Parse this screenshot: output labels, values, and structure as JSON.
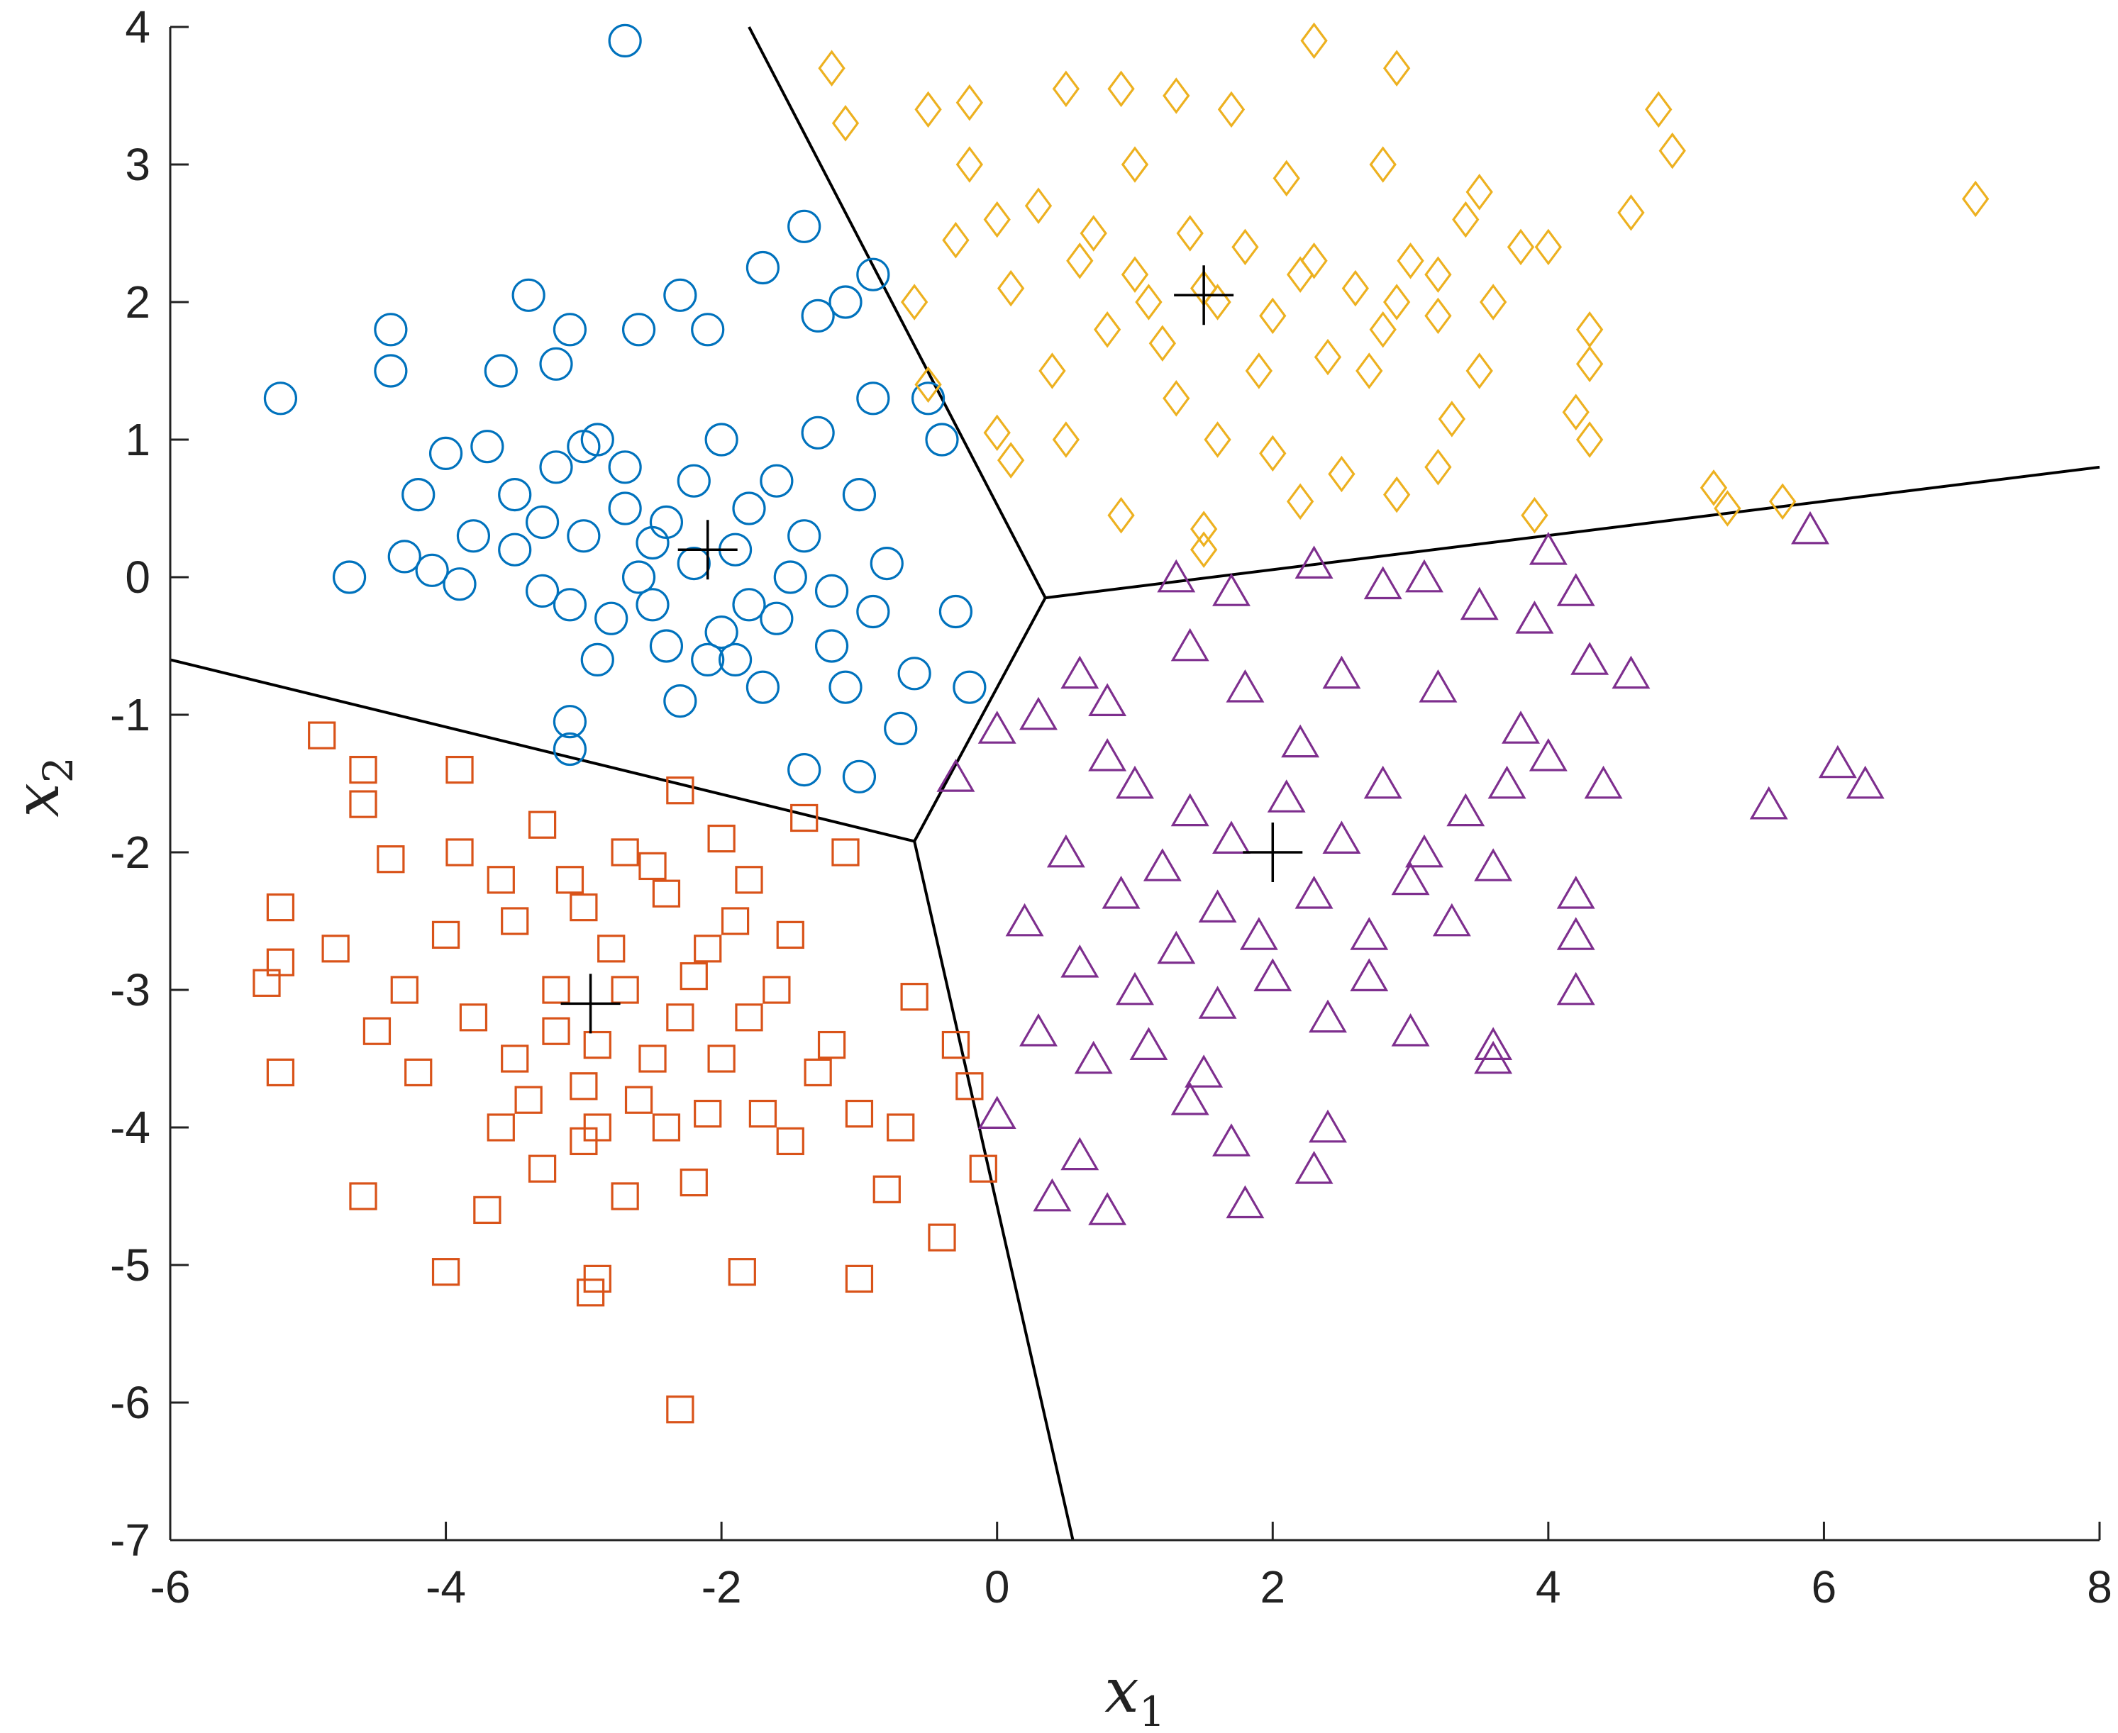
{
  "chart_data": {
    "type": "scatter",
    "title": "",
    "xlabel": {
      "base": "x",
      "sub": "1"
    },
    "ylabel": {
      "base": "x",
      "sub": "2"
    },
    "xlim": [
      -6,
      8
    ],
    "ylim": [
      -7,
      4
    ],
    "xticks": [
      "-6",
      "-4",
      "-2",
      "0",
      "2",
      "4",
      "6",
      "8"
    ],
    "yticks": [
      "4",
      "3",
      "2",
      "1",
      "0",
      "-1",
      "-2",
      "-3",
      "-4",
      "-5",
      "-6",
      "-7"
    ],
    "grid": false,
    "legend": "none",
    "series": [
      {
        "marker": "circle",
        "color": "#0072BD",
        "centroid": [
          -2.1,
          0.2
        ],
        "points": [
          [
            -2.7,
            3.9
          ],
          [
            -5.2,
            1.3
          ],
          [
            -4.7,
            0.0
          ],
          [
            -4.4,
            1.8
          ],
          [
            -4.4,
            1.5
          ],
          [
            -4.3,
            0.15
          ],
          [
            -4.2,
            0.6
          ],
          [
            -4.1,
            0.05
          ],
          [
            -3.9,
            -0.05
          ],
          [
            -3.8,
            0.3
          ],
          [
            -3.6,
            1.5
          ],
          [
            -3.4,
            2.05
          ],
          [
            -3.2,
            1.55
          ],
          [
            -3.1,
            1.8
          ],
          [
            -3.2,
            0.8
          ],
          [
            -3.1,
            -0.2
          ],
          [
            -2.9,
            1.0
          ],
          [
            -2.7,
            0.5
          ],
          [
            -2.6,
            1.8
          ],
          [
            -2.3,
            2.05
          ],
          [
            -2.1,
            1.8
          ],
          [
            -1.7,
            2.25
          ],
          [
            -1.4,
            2.55
          ],
          [
            -1.3,
            1.9
          ],
          [
            -1.1,
            2.0
          ],
          [
            -0.9,
            2.2
          ],
          [
            -0.9,
            1.3
          ],
          [
            -0.5,
            1.3
          ],
          [
            -0.4,
            1.0
          ],
          [
            -0.3,
            -0.25
          ],
          [
            -0.2,
            -0.8
          ],
          [
            -1.0,
            -1.45
          ],
          [
            -0.7,
            -1.1
          ],
          [
            -1.4,
            -1.4
          ],
          [
            -3.1,
            -1.05
          ],
          [
            -3.1,
            -1.25
          ],
          [
            -1.9,
            -0.6
          ],
          [
            -1.6,
            -0.3
          ],
          [
            -2.4,
            0.4
          ],
          [
            -2.2,
            0.1
          ],
          [
            -2.0,
            -0.4
          ],
          [
            -1.8,
            0.5
          ],
          [
            -2.5,
            -0.2
          ],
          [
            -1.5,
            0.0
          ],
          [
            -1.2,
            -0.5
          ],
          [
            -2.8,
            -0.3
          ],
          [
            -3.5,
            0.6
          ],
          [
            -3.7,
            0.95
          ],
          [
            -4.0,
            0.9
          ],
          [
            -1.0,
            0.6
          ],
          [
            -0.8,
            0.1
          ],
          [
            -0.6,
            -0.7
          ],
          [
            -3.5,
            0.2
          ],
          [
            -3.3,
            0.4
          ],
          [
            -2.6,
            0.0
          ],
          [
            -1.7,
            -0.8
          ],
          [
            -2.3,
            -0.9
          ],
          [
            -2.0,
            1.0
          ],
          [
            -1.3,
            1.05
          ],
          [
            -0.9,
            -0.25
          ],
          [
            -3.0,
            0.3
          ],
          [
            -2.9,
            -0.6
          ],
          [
            -2.4,
            -0.5
          ],
          [
            -2.2,
            0.7
          ],
          [
            -1.9,
            0.2
          ],
          [
            -1.8,
            -0.2
          ],
          [
            -1.6,
            0.7
          ],
          [
            -1.4,
            0.3
          ],
          [
            -1.2,
            -0.1
          ],
          [
            -1.1,
            -0.8
          ],
          [
            -2.7,
            0.8
          ],
          [
            -3.3,
            -0.1
          ],
          [
            -3.0,
            0.95
          ],
          [
            -2.5,
            0.25
          ],
          [
            -2.1,
            -0.6
          ]
        ]
      },
      {
        "marker": "diamond",
        "color": "#EDB120",
        "centroid": [
          1.5,
          2.05
        ],
        "points": [
          [
            -1.2,
            3.7
          ],
          [
            -1.1,
            3.3
          ],
          [
            -0.5,
            3.4
          ],
          [
            -0.2,
            3.45
          ],
          [
            0.5,
            3.55
          ],
          [
            0.9,
            3.55
          ],
          [
            1.3,
            3.5
          ],
          [
            2.3,
            3.9
          ],
          [
            2.9,
            3.7
          ],
          [
            4.8,
            3.4
          ],
          [
            4.9,
            3.1
          ],
          [
            7.1,
            2.75
          ],
          [
            4.6,
            2.65
          ],
          [
            3.8,
            2.4
          ],
          [
            4.0,
            2.4
          ],
          [
            4.3,
            1.8
          ],
          [
            4.3,
            1.55
          ],
          [
            4.2,
            1.2
          ],
          [
            4.3,
            1.0
          ],
          [
            5.2,
            0.65
          ],
          [
            5.3,
            0.5
          ],
          [
            5.7,
            0.55
          ],
          [
            3.9,
            0.45
          ],
          [
            3.3,
            1.15
          ],
          [
            3.2,
            0.8
          ],
          [
            2.9,
            0.6
          ],
          [
            2.5,
            0.75
          ],
          [
            2.2,
            0.55
          ],
          [
            1.5,
            0.2
          ],
          [
            1.5,
            0.35
          ],
          [
            0.9,
            0.45
          ],
          [
            0.5,
            1.0
          ],
          [
            0.1,
            0.85
          ],
          [
            0.0,
            1.05
          ],
          [
            -0.5,
            1.4
          ],
          [
            -0.6,
            2.0
          ],
          [
            -0.3,
            2.45
          ],
          [
            0.1,
            2.1
          ],
          [
            0.3,
            2.7
          ],
          [
            0.6,
            2.3
          ],
          [
            0.8,
            1.8
          ],
          [
            1.0,
            2.2
          ],
          [
            1.2,
            1.7
          ],
          [
            1.4,
            2.5
          ],
          [
            1.6,
            2.0
          ],
          [
            1.8,
            2.4
          ],
          [
            2.0,
            1.9
          ],
          [
            2.2,
            2.2
          ],
          [
            2.4,
            1.6
          ],
          [
            2.6,
            2.1
          ],
          [
            2.8,
            1.8
          ],
          [
            3.0,
            2.3
          ],
          [
            3.2,
            1.9
          ],
          [
            3.4,
            2.6
          ],
          [
            3.6,
            2.0
          ],
          [
            1.0,
            3.0
          ],
          [
            1.7,
            3.4
          ],
          [
            2.1,
            2.9
          ],
          [
            2.8,
            3.0
          ],
          [
            3.5,
            2.8
          ],
          [
            0.4,
            1.5
          ],
          [
            1.3,
            1.3
          ],
          [
            1.9,
            1.5
          ],
          [
            2.7,
            1.5
          ],
          [
            3.5,
            1.5
          ],
          [
            -0.2,
            3.0
          ],
          [
            0.0,
            2.6
          ],
          [
            0.7,
            2.5
          ],
          [
            1.1,
            2.0
          ],
          [
            1.5,
            2.1
          ],
          [
            2.3,
            2.3
          ],
          [
            2.9,
            2.0
          ],
          [
            3.2,
            2.2
          ],
          [
            1.6,
            1.0
          ],
          [
            2.0,
            0.9
          ]
        ]
      },
      {
        "marker": "square",
        "color": "#D95319",
        "centroid": [
          -2.95,
          -3.1
        ],
        "points": [
          [
            -4.9,
            -1.15
          ],
          [
            -4.6,
            -1.4
          ],
          [
            -4.6,
            -1.65
          ],
          [
            -5.2,
            -2.4
          ],
          [
            -5.2,
            -2.8
          ],
          [
            -5.3,
            -2.95
          ],
          [
            -5.2,
            -3.6
          ],
          [
            -4.6,
            -4.5
          ],
          [
            -4.0,
            -5.05
          ],
          [
            -2.95,
            -5.2
          ],
          [
            -2.9,
            -5.1
          ],
          [
            -2.3,
            -6.05
          ],
          [
            -1.85,
            -5.05
          ],
          [
            -1.0,
            -5.1
          ],
          [
            -0.4,
            -4.8
          ],
          [
            -0.1,
            -4.3
          ],
          [
            -0.8,
            -4.45
          ],
          [
            -0.2,
            -3.7
          ],
          [
            -0.3,
            -3.4
          ],
          [
            -0.6,
            -3.05
          ],
          [
            -1.1,
            -2.0
          ],
          [
            -1.4,
            -1.75
          ],
          [
            -2.3,
            -1.55
          ],
          [
            -3.9,
            -1.4
          ],
          [
            -4.4,
            -2.05
          ],
          [
            -4.0,
            -2.6
          ],
          [
            -3.6,
            -2.2
          ],
          [
            -3.3,
            -1.8
          ],
          [
            -3.0,
            -2.4
          ],
          [
            -2.7,
            -2.0
          ],
          [
            -2.4,
            -2.3
          ],
          [
            -2.1,
            -2.7
          ],
          [
            -1.8,
            -2.2
          ],
          [
            -1.5,
            -2.6
          ],
          [
            -3.8,
            -3.2
          ],
          [
            -3.5,
            -3.5
          ],
          [
            -3.2,
            -3.0
          ],
          [
            -2.9,
            -3.4
          ],
          [
            -2.6,
            -3.8
          ],
          [
            -2.3,
            -3.2
          ],
          [
            -2.0,
            -3.5
          ],
          [
            -1.7,
            -3.9
          ],
          [
            -3.6,
            -4.0
          ],
          [
            -3.3,
            -4.3
          ],
          [
            -3.0,
            -4.1
          ],
          [
            -2.7,
            -4.5
          ],
          [
            -2.4,
            -4.0
          ],
          [
            -4.2,
            -3.6
          ],
          [
            -4.5,
            -3.3
          ],
          [
            -4.8,
            -2.7
          ],
          [
            -1.2,
            -3.4
          ],
          [
            -1.0,
            -3.9
          ],
          [
            -0.7,
            -4.0
          ],
          [
            -1.5,
            -4.1
          ],
          [
            -1.8,
            -3.2
          ],
          [
            -2.2,
            -4.4
          ],
          [
            -3.7,
            -4.6
          ],
          [
            -3.4,
            -3.8
          ],
          [
            -2.8,
            -2.7
          ],
          [
            -3.1,
            -2.2
          ],
          [
            -2.5,
            -2.1
          ],
          [
            -2.0,
            -1.9
          ],
          [
            -3.9,
            -2.0
          ],
          [
            -4.3,
            -3.0
          ],
          [
            -3.0,
            -3.7
          ],
          [
            -2.7,
            -3.0
          ],
          [
            -2.2,
            -2.9
          ],
          [
            -1.9,
            -2.5
          ],
          [
            -1.6,
            -3.0
          ],
          [
            -3.5,
            -2.5
          ],
          [
            -3.2,
            -3.3
          ],
          [
            -2.9,
            -4.0
          ],
          [
            -2.5,
            -3.5
          ],
          [
            -2.1,
            -3.9
          ],
          [
            -1.3,
            -3.6
          ]
        ]
      },
      {
        "marker": "triangle",
        "color": "#7E2F8E",
        "centroid": [
          2.0,
          -2.0
        ],
        "points": [
          [
            1.3,
            0.0
          ],
          [
            1.7,
            -0.1
          ],
          [
            2.3,
            0.1
          ],
          [
            2.8,
            -0.05
          ],
          [
            3.1,
            0.0
          ],
          [
            3.5,
            -0.2
          ],
          [
            3.9,
            -0.3
          ],
          [
            4.0,
            0.2
          ],
          [
            4.2,
            -0.1
          ],
          [
            4.3,
            -0.6
          ],
          [
            4.6,
            -0.7
          ],
          [
            5.9,
            0.35
          ],
          [
            6.1,
            -1.35
          ],
          [
            6.3,
            -1.5
          ],
          [
            5.6,
            -1.65
          ],
          [
            4.4,
            -1.5
          ],
          [
            4.2,
            -2.3
          ],
          [
            4.2,
            -2.6
          ],
          [
            4.2,
            -3.0
          ],
          [
            3.6,
            -3.4
          ],
          [
            3.6,
            -3.5
          ],
          [
            3.0,
            -3.3
          ],
          [
            2.4,
            -4.0
          ],
          [
            2.3,
            -4.3
          ],
          [
            1.8,
            -4.55
          ],
          [
            1.7,
            -4.1
          ],
          [
            1.4,
            -3.8
          ],
          [
            0.8,
            -4.6
          ],
          [
            0.6,
            -4.2
          ],
          [
            0.4,
            -4.5
          ],
          [
            0.0,
            -3.9
          ],
          [
            -0.3,
            -1.45
          ],
          [
            0.0,
            -1.1
          ],
          [
            0.3,
            -1.0
          ],
          [
            0.6,
            -0.7
          ],
          [
            0.8,
            -0.9
          ],
          [
            1.4,
            -0.5
          ],
          [
            1.8,
            -0.8
          ],
          [
            2.5,
            -0.7
          ],
          [
            3.2,
            -0.8
          ],
          [
            3.8,
            -1.1
          ],
          [
            4.0,
            -1.3
          ],
          [
            1.0,
            -1.5
          ],
          [
            1.4,
            -1.7
          ],
          [
            1.7,
            -1.9
          ],
          [
            2.1,
            -1.6
          ],
          [
            2.5,
            -1.9
          ],
          [
            2.8,
            -1.5
          ],
          [
            3.1,
            -2.0
          ],
          [
            3.4,
            -1.7
          ],
          [
            0.5,
            -2.0
          ],
          [
            0.9,
            -2.3
          ],
          [
            1.2,
            -2.1
          ],
          [
            1.6,
            -2.4
          ],
          [
            1.9,
            -2.6
          ],
          [
            2.3,
            -2.3
          ],
          [
            2.7,
            -2.6
          ],
          [
            3.0,
            -2.2
          ],
          [
            3.3,
            -2.5
          ],
          [
            3.6,
            -2.1
          ],
          [
            0.2,
            -2.5
          ],
          [
            0.6,
            -2.8
          ],
          [
            1.0,
            -3.0
          ],
          [
            1.3,
            -2.7
          ],
          [
            1.6,
            -3.1
          ],
          [
            2.0,
            -2.9
          ],
          [
            2.4,
            -3.2
          ],
          [
            2.7,
            -2.9
          ],
          [
            0.3,
            -3.3
          ],
          [
            0.7,
            -3.5
          ],
          [
            1.1,
            -3.4
          ],
          [
            1.5,
            -3.6
          ],
          [
            0.8,
            -1.3
          ],
          [
            2.2,
            -1.2
          ],
          [
            3.7,
            -1.5
          ]
        ]
      }
    ],
    "boundaries": [
      [
        [
          0.35,
          -0.15
        ],
        [
          -1.8,
          4.0
        ]
      ],
      [
        [
          0.35,
          -0.15
        ],
        [
          8.0,
          0.8
        ]
      ],
      [
        [
          0.35,
          -0.15
        ],
        [
          -0.6,
          -1.92
        ]
      ],
      [
        [
          -0.6,
          -1.92
        ],
        [
          -6.0,
          -0.6
        ]
      ],
      [
        [
          -0.6,
          -1.92
        ],
        [
          0.55,
          -7.0
        ]
      ]
    ]
  }
}
